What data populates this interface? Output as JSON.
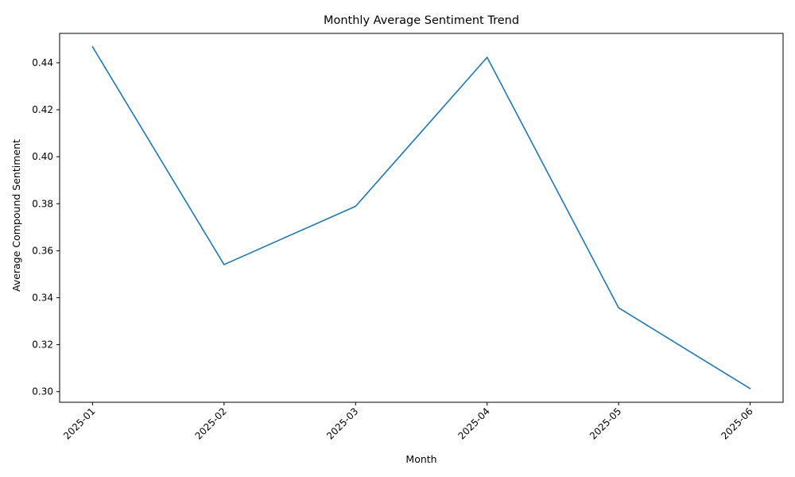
{
  "chart_data": {
    "type": "line",
    "title": "Monthly Average Sentiment Trend",
    "xlabel": "Month",
    "ylabel": "Average Compound Sentiment",
    "categories": [
      "2025-01",
      "2025-02",
      "2025-03",
      "2025-04",
      "2025-05",
      "2025-06"
    ],
    "series": [
      {
        "values": [
          0.4468,
          0.3541,
          0.3789,
          0.4423,
          0.3357,
          0.3013
        ],
        "color": "#1f77b4"
      }
    ],
    "ylim": [
      0.2955,
      0.4525
    ],
    "yticks": [
      0.3,
      0.32,
      0.34,
      0.36,
      0.38,
      0.4,
      0.42,
      0.44
    ],
    "ytick_labels": [
      "0.30",
      "0.32",
      "0.34",
      "0.36",
      "0.38",
      "0.40",
      "0.42",
      "0.44"
    ],
    "xtick_rotation": 45,
    "grid": false,
    "legend": "none"
  }
}
